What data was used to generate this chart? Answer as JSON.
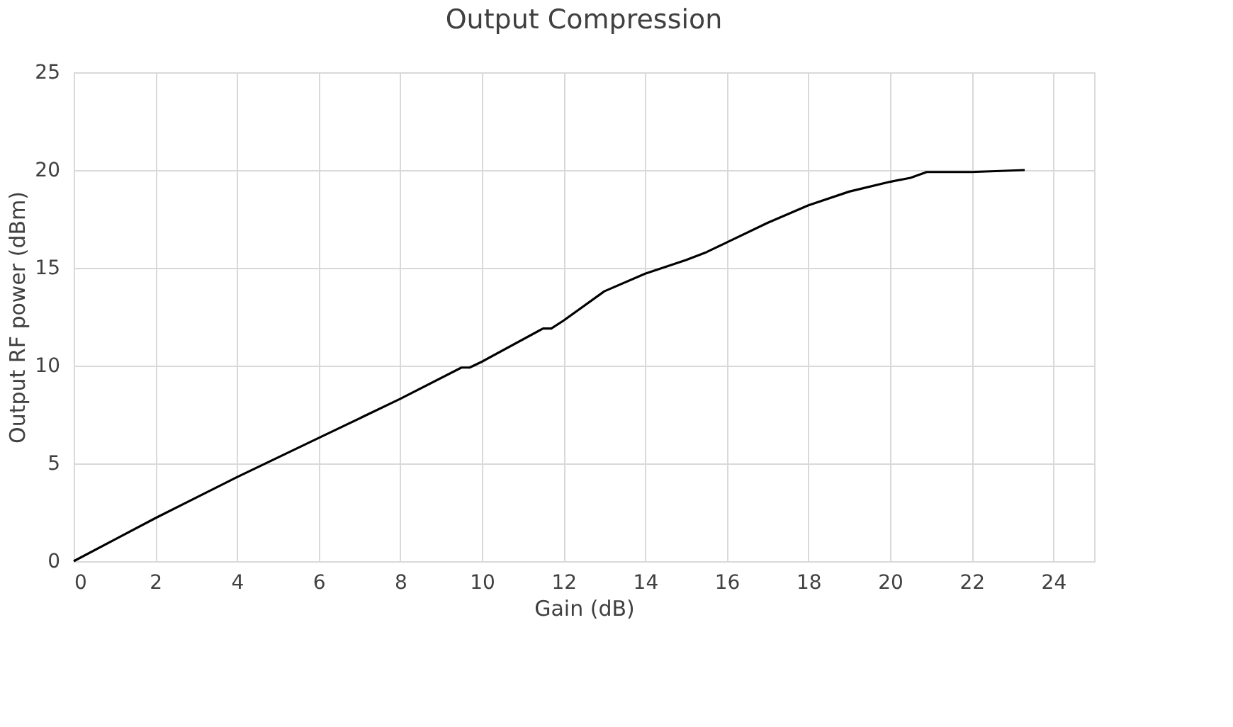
{
  "chart_data": {
    "type": "line",
    "title": "Output Compression",
    "xlabel": "Gain (dB)",
    "ylabel": "Output RF power (dBm)",
    "xlim": [
      0,
      25
    ],
    "xticks": [
      0,
      2,
      4,
      6,
      8,
      10,
      12,
      14,
      16,
      18,
      20,
      22,
      24
    ],
    "ylim": [
      0,
      25
    ],
    "yticks": [
      0,
      5,
      10,
      15,
      20,
      25
    ],
    "grid": true,
    "series": [
      {
        "color": "#000000",
        "x": [
          0,
          1,
          2,
          4,
          6,
          8,
          9.5,
          9.7,
          10,
          11.5,
          11.7,
          12,
          13,
          14,
          15,
          15.5,
          16,
          17,
          18,
          19,
          20,
          20.5,
          20.9,
          22,
          23.3
        ],
        "values": [
          0,
          1.1,
          2.2,
          4.3,
          6.3,
          8.3,
          9.9,
          9.9,
          10.2,
          11.9,
          11.9,
          12.3,
          13.8,
          14.7,
          15.4,
          15.8,
          16.3,
          17.3,
          18.2,
          18.9,
          19.4,
          19.6,
          19.9,
          19.9,
          20.0
        ]
      }
    ]
  }
}
